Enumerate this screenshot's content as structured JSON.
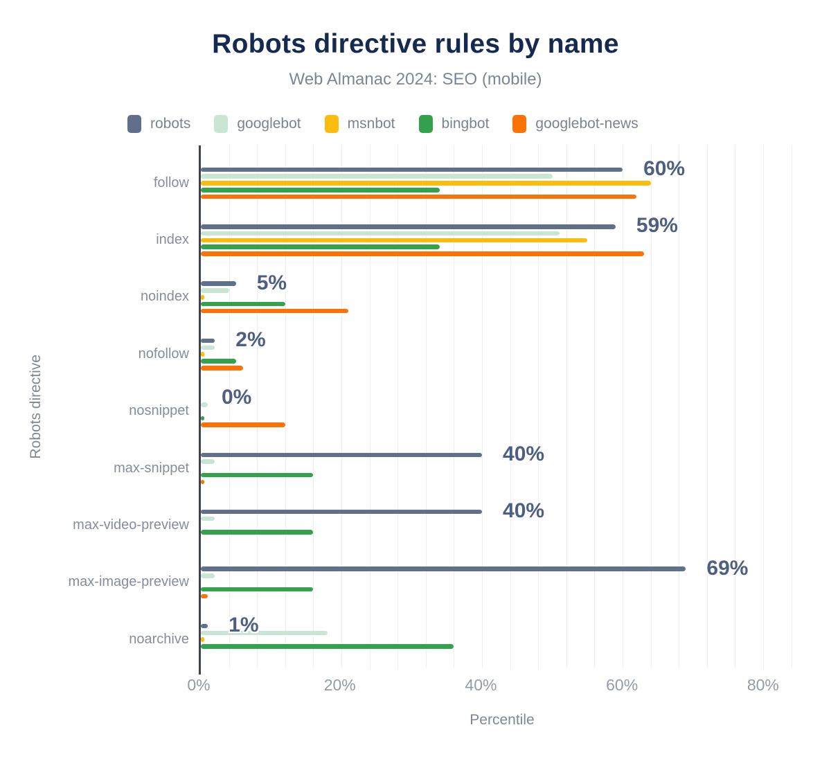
{
  "chart_data": {
    "type": "bar",
    "orientation": "horizontal",
    "title": "Robots directive rules by name",
    "subtitle": "Web Almanac 2024: SEO (mobile)",
    "xlabel": "Percentile",
    "ylabel": "Robots directive",
    "categories": [
      "follow",
      "index",
      "noindex",
      "nofollow",
      "nosnippet",
      "max-snippet",
      "max-video-preview",
      "max-image-preview",
      "noarchive"
    ],
    "series": [
      {
        "name": "robots",
        "color": "#61708a",
        "values": [
          60,
          59,
          5,
          2,
          0,
          40,
          40,
          69,
          1
        ]
      },
      {
        "name": "googlebot",
        "color": "#c9e6d5",
        "values": [
          50,
          51,
          4,
          2,
          1,
          2,
          2,
          2,
          18
        ]
      },
      {
        "name": "msnbot",
        "color": "#fbbc0d",
        "values": [
          64,
          55,
          0.5,
          0.5,
          0,
          0,
          0,
          0,
          0.5
        ]
      },
      {
        "name": "bingbot",
        "color": "#34a24d",
        "values": [
          34,
          34,
          12,
          5,
          0.5,
          16,
          16,
          16,
          36
        ]
      },
      {
        "name": "googlebot-news",
        "color": "#fb7305",
        "values": [
          62,
          63,
          21,
          6,
          12,
          0.3,
          0,
          1,
          0
        ]
      }
    ],
    "value_labels": [
      "60%",
      "59%",
      "5%",
      "2%",
      "0%",
      "40%",
      "40%",
      "69%",
      "1%"
    ],
    "x_ticks": [
      "0%",
      "20%",
      "40%",
      "60%",
      "80%"
    ],
    "xlim": [
      0,
      86
    ],
    "grid": {
      "vertical_step_pct": 4,
      "horizontal": false
    },
    "legend_position": "top-left",
    "palette": {
      "title_color": "#162a50",
      "subtitle_color": "#7d8594",
      "value_label_color": "#4d5f82",
      "axis_line_color": "#3d434c",
      "tick_label_color": "#939aa8",
      "gridline_color": "#edeff3"
    }
  }
}
